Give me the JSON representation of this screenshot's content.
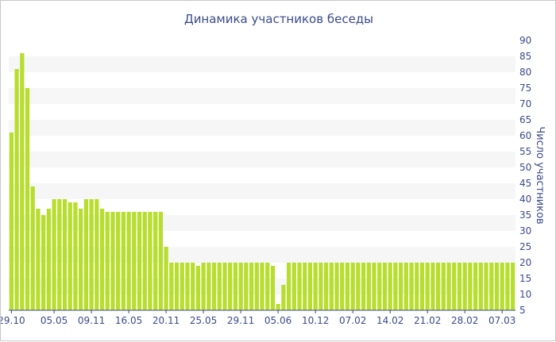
{
  "chart_data": {
    "type": "bar",
    "title": "Динамика участников беседы",
    "xlabel": "",
    "ylabel": "Число участников",
    "ylim": [
      5,
      90
    ],
    "yticks": [
      5,
      10,
      15,
      20,
      25,
      30,
      35,
      40,
      45,
      50,
      55,
      60,
      65,
      70,
      75,
      80,
      85,
      90
    ],
    "xtick_labels": [
      "29.10",
      "05.05",
      "09.11",
      "16.05",
      "20.11",
      "25.05",
      "29.11",
      "05.06",
      "10.12",
      "07.02",
      "14.02",
      "21.02",
      "28.02",
      "07.03"
    ],
    "xtick_indices": [
      0,
      8,
      15,
      22,
      29,
      36,
      43,
      50,
      57,
      64,
      71,
      78,
      85,
      92
    ],
    "grid": true,
    "bar_color": "#b7de2e",
    "grid_band_color": "#f6f6f6",
    "text_color": "#3a4a8a",
    "values": [
      61,
      81,
      86,
      75,
      44,
      37,
      35,
      37,
      40,
      40,
      40,
      39,
      39,
      37,
      40,
      40,
      40,
      37,
      36,
      36,
      36,
      36,
      36,
      36,
      36,
      36,
      36,
      36,
      36,
      25,
      20,
      20,
      20,
      20,
      20,
      19,
      20,
      20,
      20,
      20,
      20,
      20,
      20,
      20,
      20,
      20,
      20,
      20,
      20,
      19,
      7,
      13,
      20,
      20,
      20,
      20,
      20,
      20,
      20,
      20,
      20,
      20,
      20,
      20,
      20,
      20,
      20,
      20,
      20,
      20,
      20,
      20,
      20,
      20,
      20,
      20,
      20,
      20,
      20,
      20,
      20,
      20,
      20,
      20,
      20,
      20,
      20,
      20,
      20,
      20,
      20,
      20,
      20,
      20,
      20
    ]
  }
}
